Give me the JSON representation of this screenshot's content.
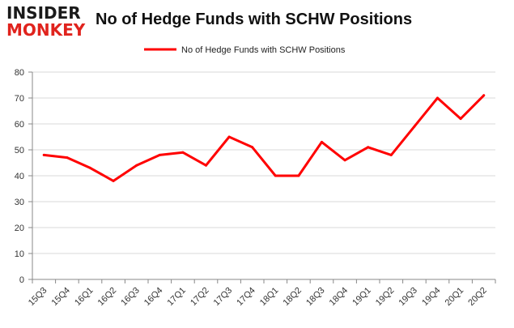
{
  "logo": {
    "line1": "INSIDER",
    "line2": "MONKEY"
  },
  "colors": {
    "series": "#ff0000",
    "logo_red": "#e0231d",
    "grid": "#d9d9d9",
    "axis": "#888888"
  },
  "chart_data": {
    "type": "line",
    "title": "No of Hedge Funds with SCHW Positions",
    "xlabel": "",
    "ylabel": "",
    "ylim": [
      0,
      80
    ],
    "yticks": [
      0,
      10,
      20,
      30,
      40,
      50,
      60,
      70,
      80
    ],
    "grid": true,
    "legend_position": "top-center",
    "categories": [
      "15Q3",
      "15Q4",
      "16Q1",
      "16Q2",
      "16Q3",
      "16Q4",
      "17Q1",
      "17Q2",
      "17Q3",
      "17Q4",
      "18Q1",
      "18Q2",
      "18Q3",
      "18Q4",
      "19Q1",
      "19Q2",
      "19Q3",
      "19Q4",
      "20Q1",
      "20Q2"
    ],
    "series": [
      {
        "name": "No of Hedge Funds with SCHW Positions",
        "values": [
          48,
          47,
          43,
          38,
          44,
          48,
          49,
          44,
          55,
          51,
          40,
          40,
          53,
          46,
          51,
          48,
          59,
          70,
          62,
          71
        ]
      }
    ]
  }
}
